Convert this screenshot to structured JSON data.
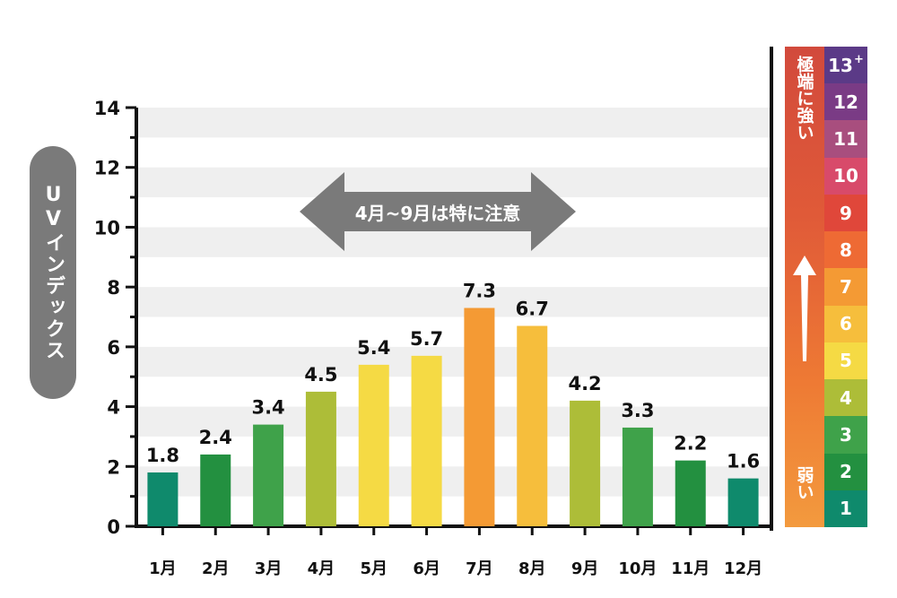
{
  "chart_data": {
    "type": "bar",
    "categories": [
      "1月",
      "2月",
      "3月",
      "4月",
      "5月",
      "6月",
      "7月",
      "8月",
      "9月",
      "10月",
      "11月",
      "12月"
    ],
    "values": [
      1.8,
      2.4,
      3.4,
      4.5,
      5.4,
      5.7,
      7.3,
      6.7,
      4.2,
      3.3,
      2.2,
      1.6
    ],
    "value_labels": [
      "1.8",
      "2.4",
      "3.4",
      "4.5",
      "5.4",
      "5.7",
      "7.3",
      "6.7",
      "4.2",
      "3.3",
      "2.2",
      "1.6"
    ],
    "bar_colors": [
      "#0f8a6c",
      "#239040",
      "#3fa24a",
      "#adbd38",
      "#f5da44",
      "#f5da44",
      "#f49a34",
      "#f6be3c",
      "#adbd38",
      "#3fa24a",
      "#239040",
      "#0f8a6c"
    ],
    "ylabel": "UVインデックス",
    "ylim": [
      0,
      14
    ],
    "yticks": [
      "0",
      "2",
      "4",
      "6",
      "8",
      "10",
      "12",
      "14"
    ],
    "grid": "horizontal bands",
    "annotation": "4月~9月は特に注意"
  },
  "scale": {
    "top_label": "極端に強い",
    "bottom_label": "弱い",
    "levels": [
      {
        "text": "13",
        "sup": "+",
        "color": "#5b3a87"
      },
      {
        "text": "12",
        "sup": "",
        "color": "#7a3b85"
      },
      {
        "text": "11",
        "sup": "",
        "color": "#a84e7e"
      },
      {
        "text": "10",
        "sup": "",
        "color": "#d84a6a"
      },
      {
        "text": "9",
        "sup": "",
        "color": "#e0473a"
      },
      {
        "text": "8",
        "sup": "",
        "color": "#ee6a34"
      },
      {
        "text": "7",
        "sup": "",
        "color": "#f49a34"
      },
      {
        "text": "6",
        "sup": "",
        "color": "#f6be3c"
      },
      {
        "text": "5",
        "sup": "",
        "color": "#f5da44"
      },
      {
        "text": "4",
        "sup": "",
        "color": "#adbd38"
      },
      {
        "text": "3",
        "sup": "",
        "color": "#3fa24a"
      },
      {
        "text": "2",
        "sup": "",
        "color": "#239040"
      },
      {
        "text": "1",
        "sup": "",
        "color": "#0f8a6c"
      }
    ]
  }
}
